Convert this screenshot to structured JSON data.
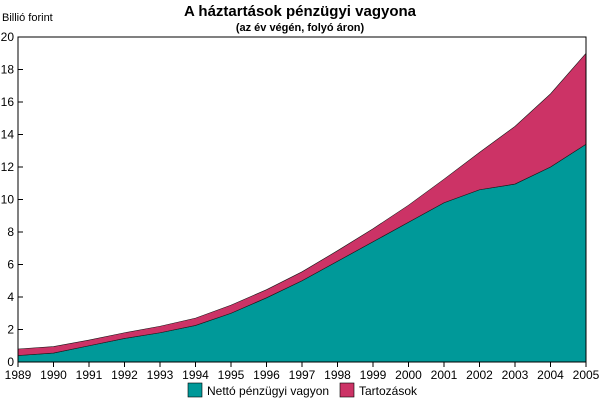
{
  "chart_data": {
    "type": "area",
    "stacked": true,
    "title": "A háztartások pénzügyi vagyona",
    "subtitle": "(az év végén, folyó áron)",
    "ylabel": "Billió forint",
    "xlabel": "",
    "x": [
      1989,
      1990,
      1991,
      1992,
      1993,
      1994,
      1995,
      1996,
      1997,
      1998,
      1999,
      2000,
      2001,
      2002,
      2003,
      2004,
      2005
    ],
    "x_tick_labels": [
      "1989",
      "1990",
      "1991",
      "1992",
      "1993",
      "1994",
      "1995",
      "1996",
      "1997",
      "1998",
      "1999",
      "2000",
      "2001",
      "2002",
      "2003",
      "2004",
      "2005"
    ],
    "ylim": [
      0,
      20
    ],
    "y_ticks": [
      0,
      2,
      4,
      6,
      8,
      10,
      12,
      14,
      16,
      18,
      20
    ],
    "grid": false,
    "legend_position": "bottom",
    "series": [
      {
        "name": "Nettó pénzügyi vagyon",
        "color": "#009999",
        "values": [
          0.4,
          0.55,
          1.0,
          1.45,
          1.8,
          2.25,
          3.0,
          3.95,
          5.0,
          6.2,
          7.4,
          8.6,
          9.8,
          10.6,
          10.95,
          12.0,
          13.4
        ]
      },
      {
        "name": "Tartozások",
        "color": "#cc3366",
        "values": [
          0.4,
          0.4,
          0.35,
          0.35,
          0.4,
          0.45,
          0.5,
          0.5,
          0.55,
          0.65,
          0.8,
          1.05,
          1.45,
          2.3,
          3.55,
          4.5,
          5.6
        ]
      }
    ]
  }
}
